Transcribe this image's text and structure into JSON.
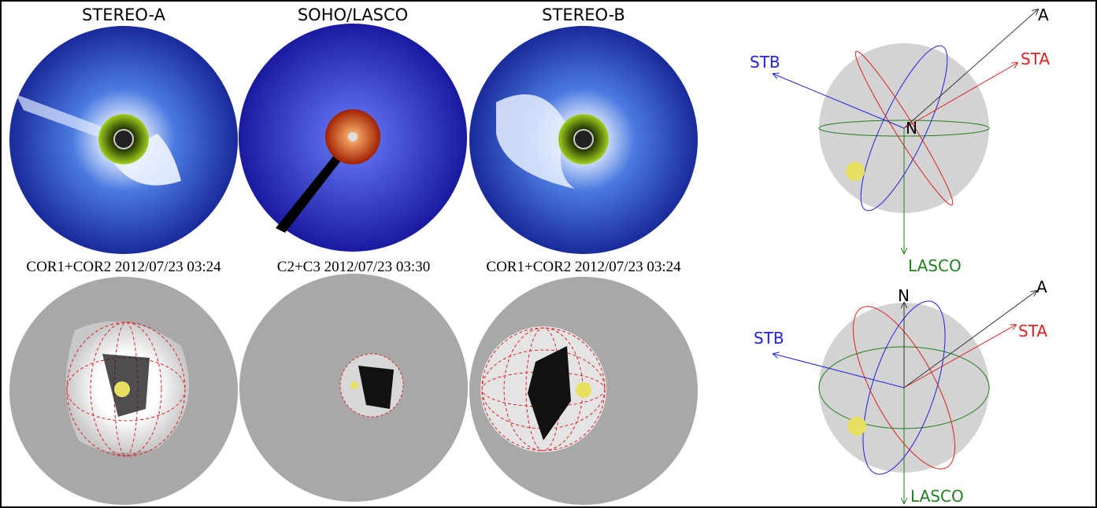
{
  "panels": [
    {
      "title": "STEREO-A",
      "caption": "COR1+COR2 2012/07/23 03:24"
    },
    {
      "title": "SOHO/LASCO",
      "caption": "C2+C3 2012/07/23 03:30"
    },
    {
      "title": "STEREO-B",
      "caption": "COR1+COR2 2012/07/23 03:24"
    }
  ],
  "diagrams": [
    {
      "a": "A",
      "sta": "STA",
      "stb": "STB",
      "n": "N",
      "lasco": "LASCO"
    },
    {
      "a": "A",
      "sta": "STA",
      "stb": "STB",
      "n": "N",
      "lasco": "LASCO"
    }
  ]
}
